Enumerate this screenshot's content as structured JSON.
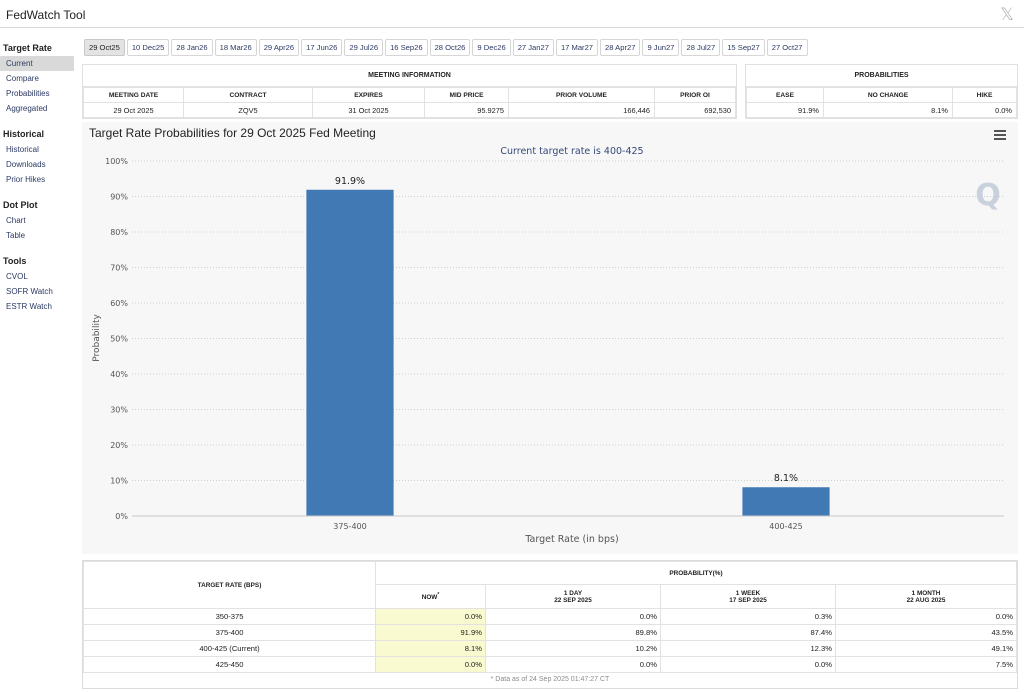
{
  "window": {
    "title": "FedWatch Tool",
    "close_glyph": "𝕏"
  },
  "sidebar": [
    {
      "title": "Target Rate",
      "items": [
        "Current",
        "Compare",
        "Probabilities",
        "Aggregated"
      ]
    },
    {
      "title": "Historical",
      "items": [
        "Historical",
        "Downloads",
        "Prior Hikes"
      ]
    },
    {
      "title": "Dot Plot",
      "items": [
        "Chart",
        "Table"
      ]
    },
    {
      "title": "Tools",
      "items": [
        "CVOL",
        "SOFR Watch",
        "ESTR Watch"
      ]
    }
  ],
  "tabs": [
    "29 Oct25",
    "10 Dec25",
    "28 Jan26",
    "18 Mar26",
    "29 Apr26",
    "17 Jun26",
    "29 Jul26",
    "16 Sep26",
    "28 Oct26",
    "9 Dec26",
    "27 Jan27",
    "17 Mar27",
    "28 Apr27",
    "9 Jun27",
    "28 Jul27",
    "15 Sep27",
    "27 Oct27"
  ],
  "meeting_info": {
    "header": "MEETING INFORMATION",
    "columns": [
      "MEETING DATE",
      "CONTRACT",
      "EXPIRES",
      "MID PRICE",
      "PRIOR VOLUME",
      "PRIOR OI"
    ],
    "row": [
      "29 Oct 2025",
      "ZQV5",
      "31 Oct 2025",
      "95.9275",
      "166,446",
      "692,530"
    ]
  },
  "probabilities": {
    "header": "PROBABILITIES",
    "columns": [
      "EASE",
      "NO CHANGE",
      "HIKE"
    ],
    "row": [
      "91.9%",
      "8.1%",
      "0.0%"
    ]
  },
  "chart_data": {
    "type": "bar",
    "title": "Target Rate Probabilities for 29 Oct 2025 Fed Meeting",
    "subtitle": "Current target rate is 400-425",
    "xlabel": "Target Rate (in bps)",
    "ylabel": "Probability",
    "categories": [
      "375-400",
      "400-425"
    ],
    "values": [
      91.9,
      8.1
    ],
    "data_labels": [
      "91.9%",
      "8.1%"
    ],
    "ylim": [
      0,
      100
    ],
    "yticks": [
      "0%",
      "10%",
      "20%",
      "30%",
      "40%",
      "50%",
      "60%",
      "70%",
      "80%",
      "90%",
      "100%"
    ],
    "grid": true,
    "bar_color": "#4179b5",
    "watermark": "Q"
  },
  "prob_table": {
    "col_target": "TARGET RATE (BPS)",
    "col_prob": "PROBABILITY(%)",
    "now_label": "NOW",
    "now_mark": "*",
    "periods": [
      {
        "label": "1 DAY",
        "date": "22 SEP 2025"
      },
      {
        "label": "1 WEEK",
        "date": "17 SEP 2025"
      },
      {
        "label": "1 MONTH",
        "date": "22 AUG 2025"
      }
    ],
    "rows": [
      [
        "350-375",
        "0.0%",
        "0.0%",
        "0.3%",
        "0.0%"
      ],
      [
        "375-400",
        "91.9%",
        "89.8%",
        "87.4%",
        "43.5%"
      ],
      [
        "400-425 (Current)",
        "8.1%",
        "10.2%",
        "12.3%",
        "49.1%"
      ],
      [
        "425-450",
        "0.0%",
        "0.0%",
        "0.0%",
        "7.5%"
      ]
    ],
    "footnote": "* Data as of 24 Sep 2025 01:47:27 CT"
  }
}
